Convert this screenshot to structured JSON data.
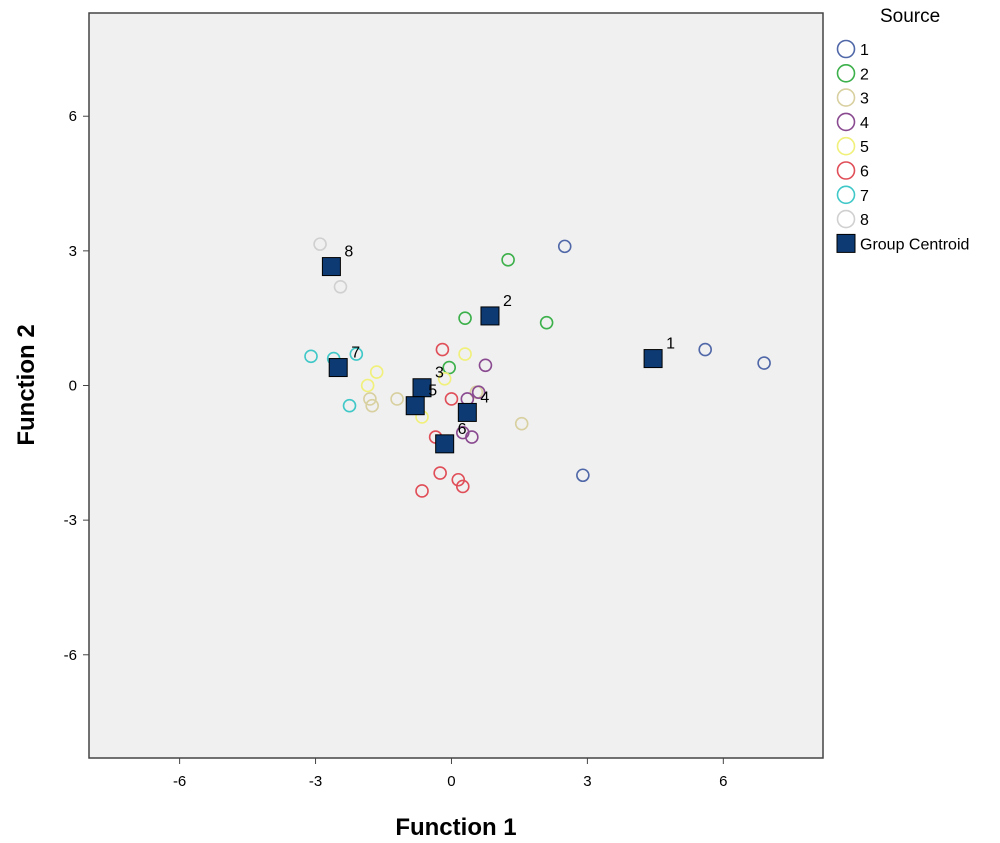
{
  "chart_data": {
    "type": "scatter",
    "xlabel": "Function 1",
    "ylabel": "Function 2",
    "xlim": [
      -8,
      8.2
    ],
    "ylim": [
      -8.3,
      8.3
    ],
    "xticks": [
      -6,
      -3,
      0,
      3,
      6
    ],
    "yticks": [
      6,
      3,
      0,
      -3,
      -6
    ],
    "grid": false,
    "background": "#f0f0f0",
    "legend": {
      "title": "Source",
      "position": "right",
      "centroid_label": "Group Centroid"
    },
    "series": [
      {
        "name": "1",
        "color": "#5068a8",
        "points": [
          [
            2.5,
            3.1
          ],
          [
            2.9,
            -2.0
          ],
          [
            5.6,
            0.8
          ],
          [
            6.9,
            0.5
          ]
        ]
      },
      {
        "name": "2",
        "color": "#3cb04a",
        "points": [
          [
            1.25,
            2.8
          ],
          [
            0.3,
            1.5
          ],
          [
            2.1,
            1.4
          ],
          [
            -0.05,
            0.4
          ]
        ]
      },
      {
        "name": "3",
        "color": "#d8d0a0",
        "points": [
          [
            -1.8,
            -0.3
          ],
          [
            -1.75,
            -0.45
          ],
          [
            -1.2,
            -0.3
          ],
          [
            1.55,
            -0.85
          ],
          [
            0.55,
            -0.15
          ]
        ]
      },
      {
        "name": "4",
        "color": "#8a4a90",
        "points": [
          [
            0.75,
            0.45
          ],
          [
            0.35,
            -0.3
          ],
          [
            0.25,
            -1.05
          ],
          [
            0.45,
            -1.15
          ],
          [
            0.6,
            -0.15
          ]
        ]
      },
      {
        "name": "5",
        "color": "#f0f07a",
        "points": [
          [
            -1.65,
            0.3
          ],
          [
            -1.85,
            0.0
          ],
          [
            0.3,
            0.7
          ],
          [
            -0.15,
            0.15
          ],
          [
            -0.65,
            -0.7
          ]
        ]
      },
      {
        "name": "6",
        "color": "#e04e58",
        "points": [
          [
            -0.2,
            0.8
          ],
          [
            0.0,
            -0.3
          ],
          [
            -0.35,
            -1.15
          ],
          [
            -0.25,
            -1.95
          ],
          [
            0.15,
            -2.1
          ],
          [
            0.25,
            -2.25
          ],
          [
            -0.65,
            -2.35
          ],
          [
            0.4,
            -0.6
          ]
        ]
      },
      {
        "name": "7",
        "color": "#40c8c8",
        "points": [
          [
            -3.1,
            0.65
          ],
          [
            -2.6,
            0.6
          ],
          [
            -2.1,
            0.7
          ],
          [
            -2.25,
            -0.45
          ]
        ]
      },
      {
        "name": "8",
        "color": "#d0d0d0",
        "points": [
          [
            -2.9,
            3.15
          ],
          [
            -2.45,
            2.2
          ]
        ]
      }
    ],
    "centroids": [
      {
        "group": "1",
        "x": 4.45,
        "y": 0.6
      },
      {
        "group": "2",
        "x": 0.85,
        "y": 1.55
      },
      {
        "group": "3",
        "x": -0.65,
        "y": -0.05
      },
      {
        "group": "4",
        "x": 0.35,
        "y": -0.6
      },
      {
        "group": "5",
        "x": -0.8,
        "y": -0.45
      },
      {
        "group": "6",
        "x": -0.15,
        "y": -1.3
      },
      {
        "group": "7",
        "x": -2.5,
        "y": 0.4
      },
      {
        "group": "8",
        "x": -2.65,
        "y": 2.65
      }
    ],
    "centroid_color": "#0d3a73"
  }
}
